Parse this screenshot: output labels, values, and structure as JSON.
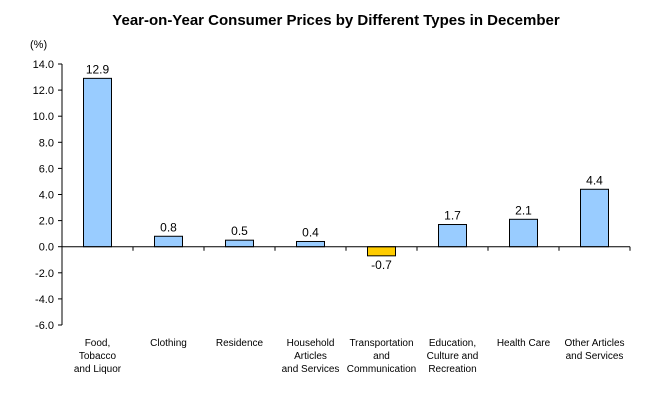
{
  "chart_data": {
    "type": "bar",
    "title": "Year-on-Year Consumer Prices by Different Types in December",
    "unit": "(%)",
    "categories": [
      [
        "Food,",
        "Tobacco",
        "and Liquor"
      ],
      [
        "Clothing"
      ],
      [
        "Residence"
      ],
      [
        "Household",
        "Articles",
        "and Services"
      ],
      [
        "Transportation",
        "and",
        "Communication"
      ],
      [
        "Education,",
        "Culture and",
        "Recreation"
      ],
      [
        "Health Care"
      ],
      [
        "Other Articles",
        "and Services"
      ]
    ],
    "values": [
      12.9,
      0.8,
      0.5,
      0.4,
      -0.7,
      1.7,
      2.1,
      4.4
    ],
    "data_labels": [
      "12.9",
      "0.8",
      "0.5",
      "0.4",
      "-0.7",
      "1.7",
      "2.1",
      "4.4"
    ],
    "yticks": [
      "14.0",
      "12.0",
      "10.0",
      "8.0",
      "6.0",
      "4.0",
      "2.0",
      "0.0",
      "-2.0",
      "-4.0",
      "-6.0"
    ],
    "ylim": [
      -6,
      14
    ],
    "colors": {
      "positive": "#99CCFF",
      "negative": "#FFCC00",
      "stroke": "#000000"
    },
    "grid": false,
    "legend": "none"
  }
}
